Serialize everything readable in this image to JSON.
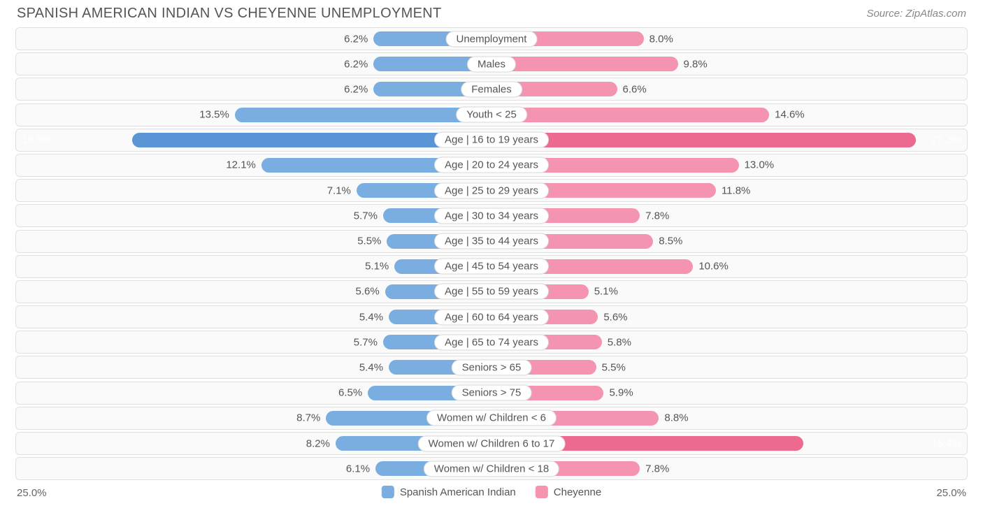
{
  "header": {
    "title": "SPANISH AMERICAN INDIAN VS CHEYENNE UNEMPLOYMENT",
    "source": "Source: ZipAtlas.com"
  },
  "chart": {
    "type": "diverging-bar",
    "axis_max": 25.0,
    "axis_left_label": "25.0%",
    "axis_right_label": "25.0%",
    "left_series": {
      "name": "Spanish American Indian",
      "bar_color": "#7aaee0",
      "highlight_color": "#5a95d6"
    },
    "right_series": {
      "name": "Cheyenne",
      "bar_color": "#f494b0",
      "highlight_color": "#ec6a8f"
    },
    "track_bg": "#fafafa",
    "track_border": "#e0e0e0",
    "value_text_color": "#555555",
    "value_inbar_color": "#ffffff",
    "label_pill_bg": "#ffffff",
    "label_pill_border": "#d8d8d8",
    "value_fontsize": 15,
    "label_fontsize": 15,
    "inbar_threshold_pct": 15.0,
    "rows": [
      {
        "label": "Unemployment",
        "left_val": 6.2,
        "left_text": "6.2%",
        "right_val": 8.0,
        "right_text": "8.0%"
      },
      {
        "label": "Males",
        "left_val": 6.2,
        "left_text": "6.2%",
        "right_val": 9.8,
        "right_text": "9.8%"
      },
      {
        "label": "Females",
        "left_val": 6.2,
        "left_text": "6.2%",
        "right_val": 6.6,
        "right_text": "6.6%"
      },
      {
        "label": "Youth < 25",
        "left_val": 13.5,
        "left_text": "13.5%",
        "right_val": 14.6,
        "right_text": "14.6%"
      },
      {
        "label": "Age | 16 to 19 years",
        "left_val": 18.9,
        "left_text": "18.9%",
        "right_val": 22.3,
        "right_text": "22.3%",
        "highlight": true
      },
      {
        "label": "Age | 20 to 24 years",
        "left_val": 12.1,
        "left_text": "12.1%",
        "right_val": 13.0,
        "right_text": "13.0%"
      },
      {
        "label": "Age | 25 to 29 years",
        "left_val": 7.1,
        "left_text": "7.1%",
        "right_val": 11.8,
        "right_text": "11.8%"
      },
      {
        "label": "Age | 30 to 34 years",
        "left_val": 5.7,
        "left_text": "5.7%",
        "right_val": 7.8,
        "right_text": "7.8%"
      },
      {
        "label": "Age | 35 to 44 years",
        "left_val": 5.5,
        "left_text": "5.5%",
        "right_val": 8.5,
        "right_text": "8.5%"
      },
      {
        "label": "Age | 45 to 54 years",
        "left_val": 5.1,
        "left_text": "5.1%",
        "right_val": 10.6,
        "right_text": "10.6%"
      },
      {
        "label": "Age | 55 to 59 years",
        "left_val": 5.6,
        "left_text": "5.6%",
        "right_val": 5.1,
        "right_text": "5.1%"
      },
      {
        "label": "Age | 60 to 64 years",
        "left_val": 5.4,
        "left_text": "5.4%",
        "right_val": 5.6,
        "right_text": "5.6%"
      },
      {
        "label": "Age | 65 to 74 years",
        "left_val": 5.7,
        "left_text": "5.7%",
        "right_val": 5.8,
        "right_text": "5.8%"
      },
      {
        "label": "Seniors > 65",
        "left_val": 5.4,
        "left_text": "5.4%",
        "right_val": 5.5,
        "right_text": "5.5%"
      },
      {
        "label": "Seniors > 75",
        "left_val": 6.5,
        "left_text": "6.5%",
        "right_val": 5.9,
        "right_text": "5.9%"
      },
      {
        "label": "Women w/ Children < 6",
        "left_val": 8.7,
        "left_text": "8.7%",
        "right_val": 8.8,
        "right_text": "8.8%"
      },
      {
        "label": "Women w/ Children 6 to 17",
        "left_val": 8.2,
        "left_text": "8.2%",
        "right_val": 16.4,
        "right_text": "16.4%",
        "right_highlight": true
      },
      {
        "label": "Women w/ Children < 18",
        "left_val": 6.1,
        "left_text": "6.1%",
        "right_val": 7.8,
        "right_text": "7.8%"
      }
    ]
  }
}
